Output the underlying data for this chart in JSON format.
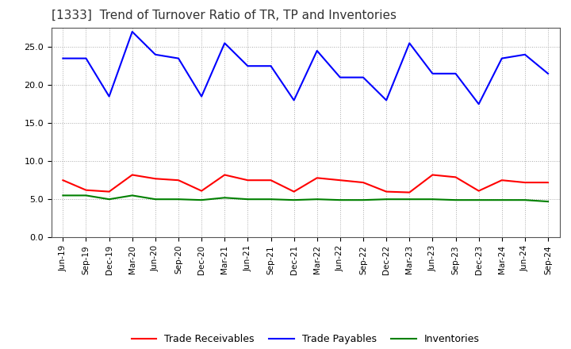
{
  "title": "[1333]  Trend of Turnover Ratio of TR, TP and Inventories",
  "x_labels": [
    "Jun-19",
    "Sep-19",
    "Dec-19",
    "Mar-20",
    "Jun-20",
    "Sep-20",
    "Dec-20",
    "Mar-21",
    "Jun-21",
    "Sep-21",
    "Dec-21",
    "Mar-22",
    "Jun-22",
    "Sep-22",
    "Dec-22",
    "Mar-23",
    "Jun-23",
    "Sep-23",
    "Dec-23",
    "Mar-24",
    "Jun-24",
    "Sep-24"
  ],
  "trade_receivables": [
    7.5,
    6.2,
    6.0,
    8.2,
    7.7,
    7.5,
    6.1,
    8.2,
    7.5,
    7.5,
    6.0,
    7.8,
    7.5,
    7.2,
    6.0,
    5.9,
    8.2,
    7.9,
    6.1,
    7.5,
    7.2,
    7.2
  ],
  "trade_payables": [
    23.5,
    23.5,
    18.5,
    27.0,
    24.0,
    23.5,
    18.5,
    25.5,
    22.5,
    22.5,
    18.0,
    24.5,
    21.0,
    21.0,
    18.0,
    25.5,
    21.5,
    21.5,
    17.5,
    23.5,
    24.0,
    21.5
  ],
  "inventories": [
    5.5,
    5.5,
    5.0,
    5.5,
    5.0,
    5.0,
    4.9,
    5.2,
    5.0,
    5.0,
    4.9,
    5.0,
    4.9,
    4.9,
    5.0,
    5.0,
    5.0,
    4.9,
    4.9,
    4.9,
    4.9,
    4.7
  ],
  "ylim": [
    0,
    27.5
  ],
  "yticks": [
    0.0,
    5.0,
    10.0,
    15.0,
    20.0,
    25.0
  ],
  "color_tr": "#FF0000",
  "color_tp": "#0000FF",
  "color_inv": "#008000",
  "background_color": "#FFFFFF",
  "grid_color": "#AAAAAA",
  "title_fontsize": 11,
  "tick_fontsize": 7.5,
  "legend_fontsize": 9,
  "legend_labels": [
    "Trade Receivables",
    "Trade Payables",
    "Inventories"
  ]
}
